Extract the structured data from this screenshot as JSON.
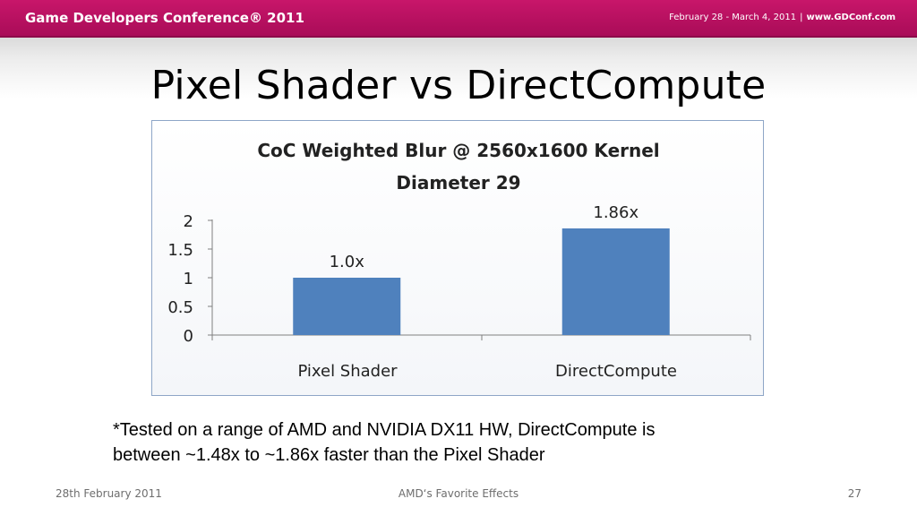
{
  "header": {
    "conference": "Game Developers Conference® 2011",
    "dates": "February 28 - March 4, 2011",
    "separator": "|",
    "url": "www.GDConf.com"
  },
  "slide": {
    "title": "Pixel Shader vs DirectCompute",
    "footnote_line1": "*Tested on a range of AMD and NVIDIA DX11 HW, DirectCompute is",
    "footnote_line2": "between ~1.48x to ~1.86x faster than the Pixel Shader"
  },
  "footer": {
    "date": "28th February 2011",
    "center": "AMD‘s Favorite Effects",
    "page": "27"
  },
  "chart_data": {
    "type": "bar",
    "title_line1": "CoC Weighted Blur @ 2560x1600 Kernel",
    "title_line2": "Diameter 29",
    "categories": [
      "Pixel Shader",
      "DirectCompute"
    ],
    "values": [
      1.0,
      1.86
    ],
    "data_labels": [
      "1.0x",
      "1.86x"
    ],
    "yticks": [
      "0",
      "0.5",
      "1",
      "1.5",
      "2"
    ],
    "ylim": [
      0,
      2
    ],
    "grid": false,
    "legend": "none",
    "bar_color": "#4f81bd"
  }
}
